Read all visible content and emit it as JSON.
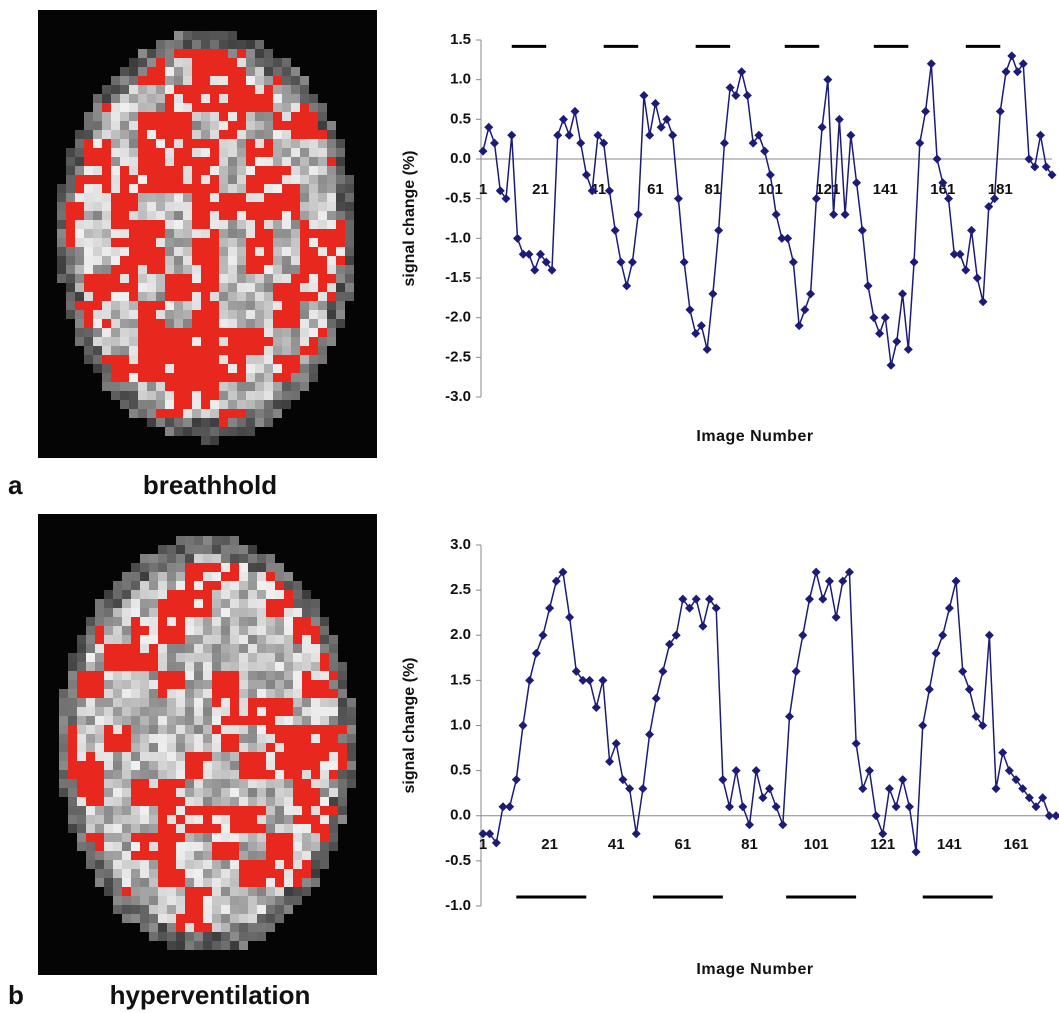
{
  "panels": [
    {
      "letter": "a",
      "caption": "breathhold"
    },
    {
      "letter": "b",
      "caption": "hyperventilation"
    }
  ],
  "chart_data": [
    {
      "type": "line",
      "x_label": "Image Number",
      "y_label": "signal change (%)",
      "marker": "diamond",
      "x": [
        1,
        3,
        5,
        7,
        9,
        11,
        13,
        15,
        17,
        19,
        21,
        23,
        25,
        27,
        29,
        31,
        33,
        35,
        37,
        39,
        41,
        43,
        45,
        47,
        49,
        51,
        53,
        55,
        57,
        59,
        61,
        63,
        65,
        67,
        69,
        71,
        73,
        75,
        77,
        79,
        81,
        83,
        85,
        87,
        89,
        91,
        93,
        95,
        97,
        99,
        101,
        103,
        105,
        107,
        109,
        111,
        113,
        115,
        117,
        119,
        121,
        123,
        125,
        127,
        129,
        131,
        133,
        135,
        137,
        139,
        141,
        143,
        145,
        147,
        149,
        151,
        153,
        155,
        157,
        159,
        161,
        163,
        165,
        167,
        169,
        171,
        173,
        175,
        177,
        179,
        181,
        183,
        185,
        187,
        189,
        191,
        193,
        195,
        197,
        199
      ],
      "series": [
        {
          "color": "#1c1c78",
          "values": [
            0.1,
            0.4,
            0.2,
            -0.4,
            -0.5,
            0.3,
            -1.0,
            -1.2,
            -1.2,
            -1.4,
            -1.2,
            -1.3,
            -1.4,
            0.3,
            0.5,
            0.3,
            0.6,
            0.2,
            -0.2,
            -0.4,
            0.3,
            0.2,
            -0.4,
            -0.9,
            -1.3,
            -1.6,
            -1.3,
            -0.7,
            0.8,
            0.3,
            0.7,
            0.4,
            0.5,
            0.3,
            -0.5,
            -1.3,
            -1.9,
            -2.2,
            -2.1,
            -2.4,
            -1.7,
            -0.9,
            0.2,
            0.9,
            0.8,
            1.1,
            0.8,
            0.2,
            0.3,
            0.1,
            -0.2,
            -0.7,
            -1.0,
            -1.0,
            -1.3,
            -2.1,
            -1.9,
            -1.7,
            -0.5,
            0.4,
            1.0,
            -0.7,
            0.5,
            -0.7,
            0.3,
            -0.3,
            -0.9,
            -1.6,
            -2.0,
            -2.2,
            -2.0,
            -2.6,
            -2.3,
            -1.7,
            -2.4,
            -1.3,
            0.2,
            0.6,
            1.2,
            0.0,
            -0.3,
            -0.5,
            -1.2,
            -1.2,
            -1.4,
            -0.9,
            -1.5,
            -1.8,
            -0.6,
            -0.5,
            0.6,
            1.1,
            1.3,
            1.1,
            1.2,
            0.0,
            -0.1,
            0.3,
            -0.1,
            -0.2
          ]
        }
      ],
      "xlim": [
        1,
        199
      ],
      "xticks": [
        1,
        21,
        41,
        61,
        81,
        101,
        121,
        141,
        161,
        181
      ],
      "ylim": [
        -3,
        1.5
      ],
      "yticks": [
        1.5,
        {
          "value": 1,
          "label": "1.0"
        },
        0.5,
        {
          "value": 0,
          "label": "0.0"
        },
        -0.5,
        {
          "value": -1,
          "label": "-1.0"
        },
        -1.5,
        {
          "value": -2,
          "label": "-2.0"
        },
        -2.5,
        {
          "value": -3,
          "label": "-3.0"
        }
      ],
      "periods": [
        {
          "start": 11,
          "end": 23
        },
        {
          "start": 43,
          "end": 55
        },
        {
          "start": 75,
          "end": 87
        },
        {
          "start": 106,
          "end": 118
        },
        {
          "start": 137,
          "end": 149
        },
        {
          "start": 169,
          "end": 181
        }
      ],
      "period_level": 1.42
    },
    {
      "type": "line",
      "x_label": "Image Number",
      "y_label": "signal change (%)",
      "marker": "diamond",
      "x": [
        1,
        3,
        5,
        7,
        9,
        11,
        13,
        15,
        17,
        19,
        21,
        23,
        25,
        27,
        29,
        31,
        33,
        35,
        37,
        39,
        41,
        43,
        45,
        47,
        49,
        51,
        53,
        55,
        57,
        59,
        61,
        63,
        65,
        67,
        69,
        71,
        73,
        75,
        77,
        79,
        81,
        83,
        85,
        87,
        89,
        91,
        93,
        95,
        97,
        99,
        101,
        103,
        105,
        107,
        109,
        111,
        113,
        115,
        117,
        119,
        121,
        123,
        125,
        127,
        129,
        131,
        133,
        135,
        137,
        139,
        141,
        143,
        145,
        147,
        149,
        151,
        153,
        155,
        157,
        159,
        161,
        163,
        165,
        167,
        169,
        171,
        173
      ],
      "series": [
        {
          "color": "#1c1c78",
          "values": [
            -0.2,
            -0.2,
            -0.3,
            0.1,
            0.1,
            0.4,
            1.0,
            1.5,
            1.8,
            2.0,
            2.3,
            2.6,
            2.7,
            2.2,
            1.6,
            1.5,
            1.5,
            1.2,
            1.5,
            0.6,
            0.8,
            0.4,
            0.3,
            -0.2,
            0.3,
            0.9,
            1.3,
            1.6,
            1.9,
            2.0,
            2.4,
            2.3,
            2.4,
            2.1,
            2.4,
            2.3,
            0.4,
            0.1,
            0.5,
            0.1,
            -0.1,
            0.5,
            0.2,
            0.3,
            0.1,
            -0.1,
            1.1,
            1.6,
            2.0,
            2.4,
            2.7,
            2.4,
            2.6,
            2.2,
            2.6,
            2.7,
            0.8,
            0.3,
            0.5,
            0.0,
            -0.2,
            0.3,
            0.1,
            0.4,
            0.1,
            -0.4,
            1.0,
            1.4,
            1.8,
            2.0,
            2.3,
            2.6,
            1.6,
            1.4,
            1.1,
            1.0,
            2.0,
            0.3,
            0.7,
            0.5,
            0.4,
            0.3,
            0.2,
            0.1,
            0.2,
            0.0,
            0.0
          ]
        }
      ],
      "xlim": [
        1,
        173
      ],
      "xticks": [
        1,
        21,
        41,
        61,
        81,
        101,
        121,
        141,
        161
      ],
      "ylim": [
        -1,
        3
      ],
      "yticks": [
        {
          "value": 3,
          "label": "3.0"
        },
        2.5,
        {
          "value": 2,
          "label": "2.0"
        },
        1.5,
        {
          "value": 1,
          "label": "1.0"
        },
        0.5,
        {
          "value": 0,
          "label": "0.0"
        },
        -0.5,
        {
          "value": -1,
          "label": "-1.0"
        }
      ],
      "periods": [
        {
          "start": 11,
          "end": 32
        },
        {
          "start": 52,
          "end": 73
        },
        {
          "start": 92,
          "end": 113
        },
        {
          "start": 133,
          "end": 154
        }
      ],
      "period_level": -0.9
    }
  ]
}
